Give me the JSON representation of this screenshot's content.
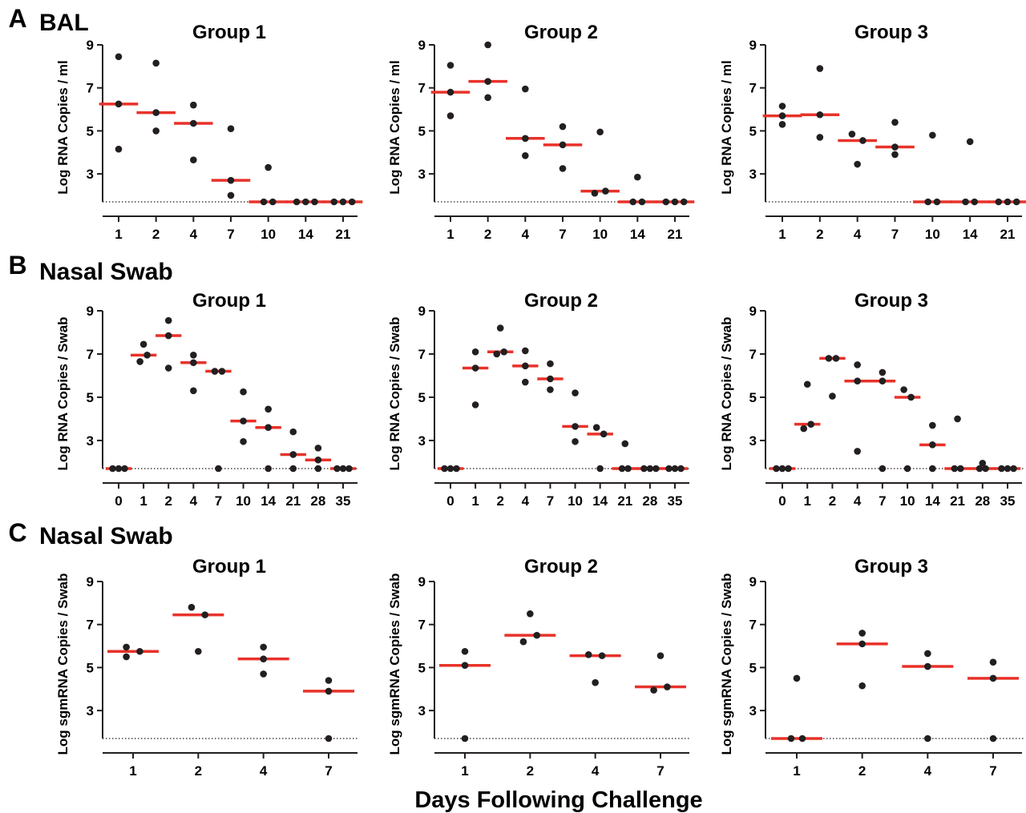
{
  "figure": {
    "x_axis_title": "Days Following Challenge",
    "median_color": "#e8322a",
    "point_color": "#231f20",
    "lod_value": 1.7
  },
  "chart_data": [
    {
      "panel": "A",
      "panel_title": "BAL",
      "type": "scatter",
      "ylabel": "Log RNA Copies / ml",
      "ylim": [
        1.7,
        9
      ],
      "yticks": [
        3,
        5,
        7,
        9
      ],
      "groups": [
        {
          "title": "Group 1",
          "categories": [
            "1",
            "2",
            "4",
            "7",
            "10",
            "14",
            "21"
          ],
          "points": [
            [
              8.45,
              6.25,
              4.15
            ],
            [
              8.15,
              5.85,
              5.0
            ],
            [
              6.2,
              5.35,
              3.65
            ],
            [
              5.1,
              2.7,
              2.0
            ],
            [
              3.3,
              1.7,
              1.7
            ],
            [
              1.7,
              1.7,
              1.7
            ],
            [
              1.7,
              1.7,
              1.7
            ]
          ],
          "medians": [
            6.25,
            5.85,
            5.35,
            2.7,
            1.7,
            1.7,
            1.7
          ]
        },
        {
          "title": "Group 2",
          "categories": [
            "1",
            "2",
            "4",
            "7",
            "10",
            "14",
            "21"
          ],
          "points": [
            [
              8.05,
              6.8,
              5.7
            ],
            [
              9.0,
              7.3,
              6.55
            ],
            [
              6.95,
              4.65,
              3.85
            ],
            [
              5.2,
              4.35,
              3.25
            ],
            [
              4.95,
              2.2,
              2.1
            ],
            [
              2.85,
              1.7,
              1.7
            ],
            [
              1.7,
              1.7,
              1.7
            ]
          ],
          "medians": [
            6.8,
            7.3,
            4.65,
            4.35,
            2.2,
            1.7,
            1.7
          ]
        },
        {
          "title": "Group 3",
          "categories": [
            "1",
            "2",
            "4",
            "7",
            "10",
            "14",
            "21"
          ],
          "points": [
            [
              6.15,
              5.7,
              5.3
            ],
            [
              7.9,
              5.75,
              4.7
            ],
            [
              4.85,
              4.55,
              3.45
            ],
            [
              5.4,
              4.25,
              3.9
            ],
            [
              4.8,
              1.7,
              1.7
            ],
            [
              4.5,
              1.7,
              1.7
            ],
            [
              1.7,
              1.7,
              1.7
            ]
          ],
          "medians": [
            5.7,
            5.75,
            4.55,
            4.25,
            1.7,
            1.7,
            1.7
          ]
        }
      ]
    },
    {
      "panel": "B",
      "panel_title": "Nasal Swab",
      "type": "scatter",
      "ylabel": "Log RNA Copies / Swab",
      "ylim": [
        1.7,
        9
      ],
      "yticks": [
        3,
        5,
        7,
        9
      ],
      "groups": [
        {
          "title": "Group 1",
          "categories": [
            "0",
            "1",
            "2",
            "4",
            "7",
            "10",
            "14",
            "21",
            "28",
            "35"
          ],
          "points": [
            [
              1.7,
              1.7,
              1.7
            ],
            [
              7.45,
              6.95,
              6.65
            ],
            [
              8.55,
              7.85,
              6.35
            ],
            [
              6.95,
              6.6,
              5.3
            ],
            [
              6.2,
              6.2,
              1.7
            ],
            [
              5.25,
              3.9,
              2.95
            ],
            [
              4.45,
              3.6,
              1.7
            ],
            [
              3.4,
              2.35,
              1.7
            ],
            [
              2.65,
              2.1,
              1.7
            ],
            [
              1.7,
              1.7,
              1.7
            ]
          ],
          "medians": [
            1.7,
            6.95,
            7.85,
            6.6,
            6.2,
            3.9,
            3.6,
            2.35,
            2.1,
            1.7
          ]
        },
        {
          "title": "Group 2",
          "categories": [
            "0",
            "1",
            "2",
            "4",
            "7",
            "10",
            "14",
            "21",
            "28",
            "35"
          ],
          "points": [
            [
              1.7,
              1.7,
              1.7
            ],
            [
              7.1,
              6.35,
              4.65
            ],
            [
              8.2,
              7.1,
              7.0
            ],
            [
              7.15,
              6.45,
              5.7
            ],
            [
              6.55,
              5.85,
              5.35
            ],
            [
              5.2,
              3.65,
              2.95
            ],
            [
              3.6,
              3.3,
              1.7
            ],
            [
              2.85,
              1.7,
              1.7
            ],
            [
              1.7,
              1.7,
              1.7
            ],
            [
              1.7,
              1.7,
              1.7
            ]
          ],
          "medians": [
            1.7,
            6.35,
            7.1,
            6.45,
            5.85,
            3.65,
            3.3,
            1.7,
            1.7,
            1.7
          ]
        },
        {
          "title": "Group 3",
          "categories": [
            "0",
            "1",
            "2",
            "4",
            "7",
            "10",
            "14",
            "21",
            "28",
            "35"
          ],
          "points": [
            [
              1.7,
              1.7,
              1.7
            ],
            [
              5.6,
              3.75,
              3.55
            ],
            [
              6.8,
              6.8,
              5.05
            ],
            [
              6.5,
              5.75,
              2.5
            ],
            [
              6.15,
              5.75,
              1.7
            ],
            [
              5.35,
              5.0,
              1.7
            ],
            [
              3.7,
              2.8,
              1.7
            ],
            [
              4.0,
              1.7,
              1.7
            ],
            [
              1.95,
              1.7,
              1.7
            ],
            [
              1.7,
              1.7,
              1.7
            ]
          ],
          "medians": [
            1.7,
            3.75,
            6.8,
            5.75,
            5.75,
            5.0,
            2.8,
            1.7,
            1.7,
            1.7
          ]
        }
      ]
    },
    {
      "panel": "C",
      "panel_title": "Nasal Swab",
      "type": "scatter",
      "ylabel": "Log sgmRNA Copies / Swab",
      "ylim": [
        1.7,
        9
      ],
      "yticks": [
        3,
        5,
        7,
        9
      ],
      "groups": [
        {
          "title": "Group 1",
          "categories": [
            "1",
            "2",
            "4",
            "7"
          ],
          "points": [
            [
              5.95,
              5.75,
              5.5
            ],
            [
              7.8,
              7.45,
              5.75
            ],
            [
              5.95,
              5.4,
              4.7
            ],
            [
              4.4,
              3.9,
              1.7
            ]
          ],
          "medians": [
            5.75,
            7.45,
            5.4,
            3.9
          ]
        },
        {
          "title": "Group 2",
          "categories": [
            "1",
            "2",
            "4",
            "7"
          ],
          "points": [
            [
              5.75,
              5.1,
              1.7
            ],
            [
              7.5,
              6.5,
              6.2
            ],
            [
              5.6,
              5.55,
              4.3
            ],
            [
              5.55,
              4.1,
              3.95
            ]
          ],
          "medians": [
            5.1,
            6.5,
            5.55,
            4.1
          ]
        },
        {
          "title": "Group 3",
          "categories": [
            "1",
            "2",
            "4",
            "7"
          ],
          "points": [
            [
              4.5,
              1.7,
              1.7
            ],
            [
              6.6,
              6.1,
              4.15
            ],
            [
              5.65,
              5.05,
              1.7
            ],
            [
              5.25,
              4.5,
              1.7
            ]
          ],
          "medians": [
            1.7,
            6.1,
            5.05,
            4.5
          ]
        }
      ]
    }
  ]
}
